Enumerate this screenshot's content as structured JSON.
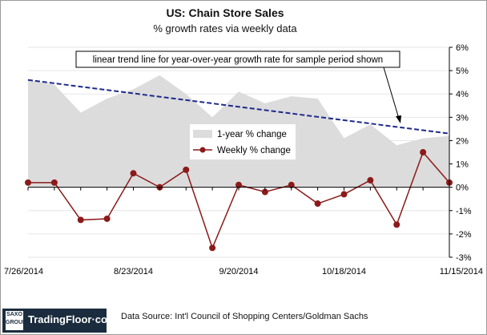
{
  "chart_data": {
    "type": "line",
    "title": "US: Chain Store Sales",
    "subtitle": "% growth rates via weekly data",
    "x_tick_labels": [
      "7/26/2014",
      "8/23/2014",
      "9/20/2014",
      "10/18/2014",
      "11/15/2014"
    ],
    "x_dates": [
      "7/26/2014",
      "8/2/2014",
      "8/9/2014",
      "8/16/2014",
      "8/23/2014",
      "8/30/2014",
      "9/6/2014",
      "9/13/2014",
      "9/20/2014",
      "9/27/2014",
      "10/4/2014",
      "10/11/2014",
      "10/18/2014",
      "10/25/2014",
      "11/1/2014",
      "11/8/2014",
      "11/15/2014"
    ],
    "y_tick_labels": [
      "6%",
      "5%",
      "4%",
      "3%",
      "2%",
      "1%",
      "0%",
      "-1%",
      "-2%",
      "-3%"
    ],
    "ylim": [
      -3,
      6
    ],
    "y_axis_side": "right",
    "legend_position": "center",
    "series": [
      {
        "name": "1-year % change",
        "kind": "area",
        "color": "#dcdcdc",
        "values": [
          4.6,
          4.4,
          3.2,
          3.8,
          4.2,
          4.8,
          4.0,
          3.0,
          4.1,
          3.6,
          3.9,
          3.8,
          2.1,
          2.7,
          1.8,
          2.1,
          2.2
        ]
      },
      {
        "name": "Weekly % change",
        "kind": "line",
        "color": "#8b1a1a",
        "values": [
          0.2,
          0.2,
          -1.4,
          -1.35,
          0.6,
          0.0,
          0.75,
          -2.6,
          0.1,
          -0.2,
          0.1,
          -0.7,
          -0.3,
          0.3,
          -1.6,
          1.5,
          0.2
        ]
      }
    ],
    "trend_line": {
      "color": "#1f2a8c",
      "start_value": 4.6,
      "end_value": 2.3
    },
    "annotation": "linear trend line for year-over-year growth rate for sample period shown"
  },
  "footer": {
    "logo_group": "SAXO GROUP",
    "logo_text": "TradingFloor·com",
    "source": "Data Source:  Int'l Council of Shopping Centers/Goldman  Sachs"
  }
}
